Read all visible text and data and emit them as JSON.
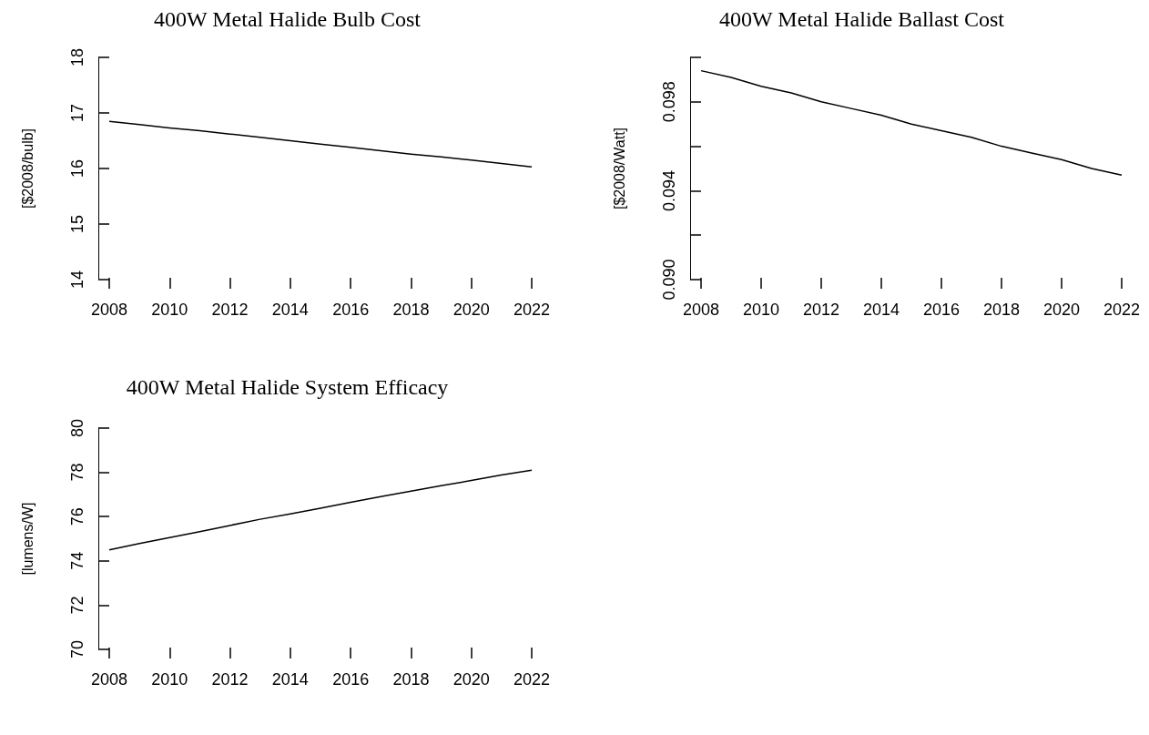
{
  "chart_data": [
    {
      "type": "line",
      "title": "400W Metal Halide Bulb Cost",
      "ylabel": "[$2008/bulb]",
      "x": [
        2008,
        2009,
        2010,
        2011,
        2012,
        2013,
        2014,
        2015,
        2016,
        2017,
        2018,
        2019,
        2020,
        2021,
        2022
      ],
      "series": [
        {
          "color": "#000000",
          "values": [
            16.85,
            16.79,
            16.73,
            16.68,
            16.62,
            16.56,
            16.5,
            16.44,
            16.38,
            16.32,
            16.26,
            16.21,
            16.15,
            16.09,
            16.03
          ]
        }
      ],
      "xlim": [
        2008,
        2022
      ],
      "xticks": [
        2008,
        2010,
        2012,
        2014,
        2016,
        2018,
        2020,
        2022
      ],
      "ylim": [
        14,
        18
      ],
      "yticks": [
        14,
        15,
        16,
        17,
        18
      ],
      "grid": false,
      "marker": "none"
    },
    {
      "type": "line",
      "title": "400W Metal Halide Ballast Cost",
      "ylabel": "[$2008/Watt]",
      "x": [
        2008,
        2009,
        2010,
        2011,
        2012,
        2013,
        2014,
        2015,
        2016,
        2017,
        2018,
        2019,
        2020,
        2021,
        2022
      ],
      "series": [
        {
          "color": "#000000",
          "values": [
            0.0994,
            0.0991,
            0.0987,
            0.0984,
            0.098,
            0.0977,
            0.0974,
            0.097,
            0.0967,
            0.0964,
            0.096,
            0.0957,
            0.0954,
            0.095,
            0.0947
          ]
        }
      ],
      "xlim": [
        2008,
        2022
      ],
      "xticks": [
        2008,
        2010,
        2012,
        2014,
        2016,
        2018,
        2020,
        2022
      ],
      "ylim": [
        0.09,
        0.1
      ],
      "yticks": [
        {
          "value": 0.09,
          "label": "0.090"
        },
        {
          "value": 0.092,
          "label": null
        },
        0.094,
        {
          "value": 0.096,
          "label": null
        },
        0.098,
        {
          "value": 0.1,
          "label": null
        }
      ],
      "grid": false,
      "marker": "none"
    },
    {
      "type": "line",
      "title": "400W Metal Halide System Efficacy",
      "ylabel": "[lumens/W]",
      "x": [
        2008,
        2009,
        2010,
        2011,
        2012,
        2013,
        2014,
        2015,
        2016,
        2017,
        2018,
        2019,
        2020,
        2021,
        2022
      ],
      "series": [
        {
          "color": "#000000",
          "values": [
            74.5,
            74.78,
            75.05,
            75.32,
            75.6,
            75.88,
            76.12,
            76.38,
            76.65,
            76.9,
            77.15,
            77.4,
            77.63,
            77.88,
            78.1
          ]
        }
      ],
      "xlim": [
        2008,
        2022
      ],
      "xticks": [
        2008,
        2010,
        2012,
        2014,
        2016,
        2018,
        2020,
        2022
      ],
      "ylim": [
        70,
        80
      ],
      "yticks": [
        70,
        72,
        74,
        76,
        78,
        80
      ],
      "grid": false,
      "marker": "none"
    }
  ]
}
